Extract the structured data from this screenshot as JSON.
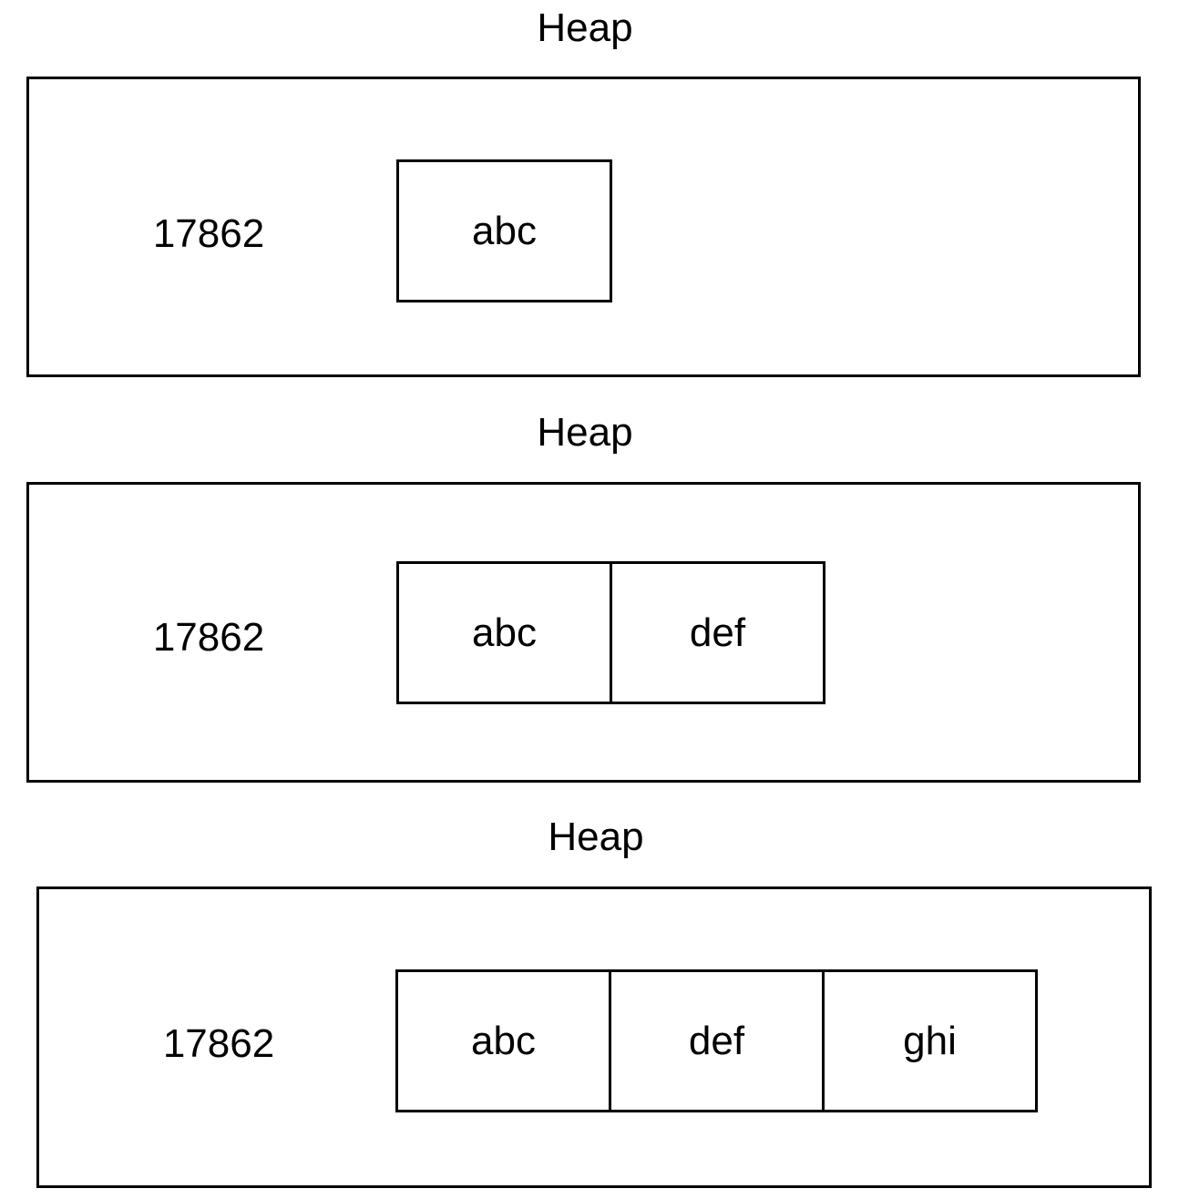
{
  "diagram": {
    "panels": [
      {
        "title": "Heap",
        "address": "17862",
        "cells": [
          "abc"
        ]
      },
      {
        "title": "Heap",
        "address": "17862",
        "cells": [
          "abc",
          "def"
        ]
      },
      {
        "title": "Heap",
        "address": "17862",
        "cells": [
          "abc",
          "def",
          "ghi"
        ]
      }
    ]
  }
}
